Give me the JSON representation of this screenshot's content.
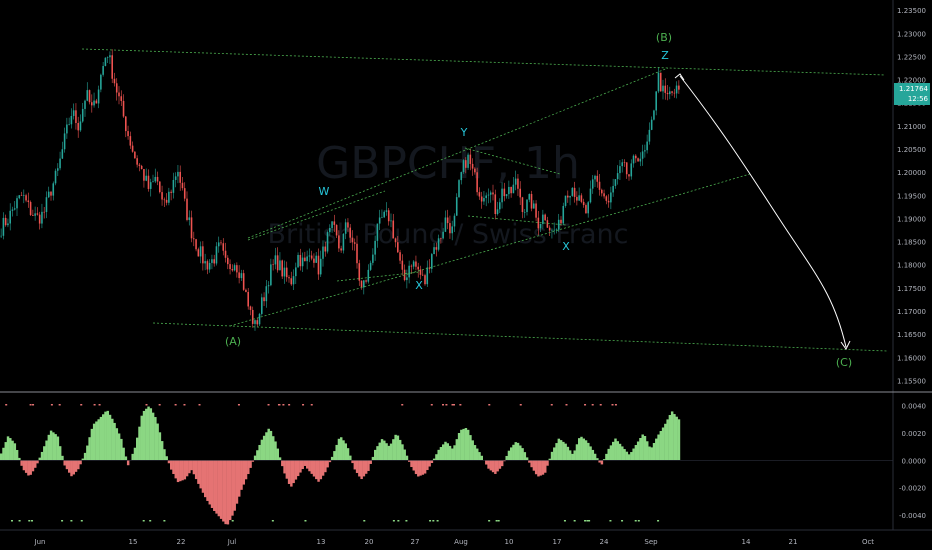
{
  "chart_data": [
    {
      "type": "candlestick",
      "panel": "price",
      "watermark": {
        "symbol": "GBPCHF, 1h",
        "description": "British Pound / Swiss Franc"
      },
      "y_axis": {
        "ticks": [
          "1.23500",
          "1.23000",
          "1.22500",
          "1.22000",
          "1.21500",
          "1.21000",
          "1.20500",
          "1.20000",
          "1.19500",
          "1.19000",
          "1.18500",
          "1.18000",
          "1.17500",
          "1.17000",
          "1.16500",
          "1.16000",
          "1.15500"
        ],
        "range": [
          1.1525,
          1.2372
        ],
        "last_price_label": "1.21764",
        "countdown_label": "12:56"
      },
      "x_axis": {
        "ticks": [
          "Jun",
          "15",
          "22",
          "Jul",
          "13",
          "20",
          "27",
          "Aug",
          "10",
          "17",
          "24",
          "Sep",
          "14",
          "21",
          "Oct"
        ]
      },
      "price_path_close": [
        1.188,
        1.19,
        1.193,
        1.195,
        1.192,
        1.19,
        1.191,
        1.196,
        1.2,
        1.207,
        1.213,
        1.21,
        1.217,
        1.213,
        1.22,
        1.2265,
        1.22,
        1.214,
        1.208,
        1.203,
        1.2,
        1.196,
        1.199,
        1.192,
        1.196,
        1.201,
        1.193,
        1.187,
        1.183,
        1.18,
        1.181,
        1.184,
        1.179,
        1.181,
        1.178,
        1.171,
        1.1665,
        1.172,
        1.178,
        1.181,
        1.178,
        1.176,
        1.182,
        1.18,
        1.183,
        1.179,
        1.185,
        1.188,
        1.183,
        1.189,
        1.184,
        1.1745,
        1.178,
        1.186,
        1.19,
        1.1905,
        1.184,
        1.176,
        1.181,
        1.179,
        1.176,
        1.183,
        1.185,
        1.19,
        1.187,
        1.1985,
        1.2035,
        1.199,
        1.195,
        1.197,
        1.192,
        1.196,
        1.195,
        1.198,
        1.192,
        1.194,
        1.189,
        1.191,
        1.187,
        1.188,
        1.196,
        1.197,
        1.193,
        1.191,
        1.199,
        1.196,
        1.193,
        1.198,
        1.201,
        1.199,
        1.204,
        1.203,
        1.2085,
        1.221,
        1.216,
        1.217,
        1.2176
      ],
      "annotations": [
        {
          "label": "(A)",
          "color": "#4caf50"
        },
        {
          "label": "W",
          "color": "#26c6da"
        },
        {
          "label": "X",
          "color": "#26c6da"
        },
        {
          "label": "Y",
          "color": "#26c6da"
        },
        {
          "label": "X",
          "color": "#26c6da"
        },
        {
          "label": "Z",
          "color": "#26c6da"
        },
        {
          "label": "(B)",
          "color": "#4caf50"
        },
        {
          "label": "(C)",
          "color": "#4caf50"
        }
      ],
      "colors": {
        "up": "#26a69a",
        "down": "#ef5350",
        "trendline": "#4caf50",
        "projection": "#ffffff",
        "last_price_bg": "#26a69a"
      }
    },
    {
      "type": "histogram",
      "panel": "oscillator",
      "y_axis": {
        "ticks": [
          "0.0040",
          "0.0020",
          "0.0000",
          "-0.0020",
          "-0.0040"
        ],
        "range": [
          -0.0051,
          0.005
        ]
      },
      "histogram_values": [
        0.0005,
        0.0018,
        0.0012,
        -0.0006,
        -0.0012,
        -0.0004,
        0.0009,
        0.0022,
        0.0018,
        -0.0004,
        -0.0012,
        -0.0006,
        0.0007,
        0.0026,
        0.0031,
        0.0037,
        0.0028,
        0.0016,
        -0.0004,
        0.001,
        0.0035,
        0.004,
        0.003,
        0.001,
        -0.0006,
        -0.0016,
        -0.0014,
        -0.0007,
        -0.0018,
        -0.0028,
        -0.0036,
        -0.0042,
        -0.0048,
        -0.0038,
        -0.0022,
        -0.001,
        0.0004,
        0.0016,
        0.0024,
        0.0012,
        -0.0008,
        -0.002,
        -0.0012,
        -0.0004,
        -0.001,
        -0.0016,
        -0.0008,
        0.0004,
        0.0018,
        0.0011,
        -0.0006,
        -0.0014,
        -0.0008,
        0.0008,
        0.0016,
        0.001,
        0.002,
        0.001,
        -0.0004,
        -0.0012,
        -0.001,
        -0.0002,
        0.0008,
        0.0014,
        0.0008,
        0.0022,
        0.0024,
        0.0012,
        0.0004,
        -0.0006,
        -0.001,
        -0.0004,
        0.0008,
        0.0014,
        0.0008,
        -0.0004,
        -0.0012,
        -0.001,
        0.0006,
        0.0016,
        0.0012,
        0.0004,
        0.0018,
        0.0014,
        0.0006,
        -0.0004,
        0.0008,
        0.0016,
        0.001,
        0.0004,
        0.0012,
        0.002,
        0.0008,
        0.0018,
        0.0026,
        0.0036,
        0.003
      ],
      "colors": {
        "positive": "#8bd783",
        "negative": "#e57373"
      }
    }
  ]
}
